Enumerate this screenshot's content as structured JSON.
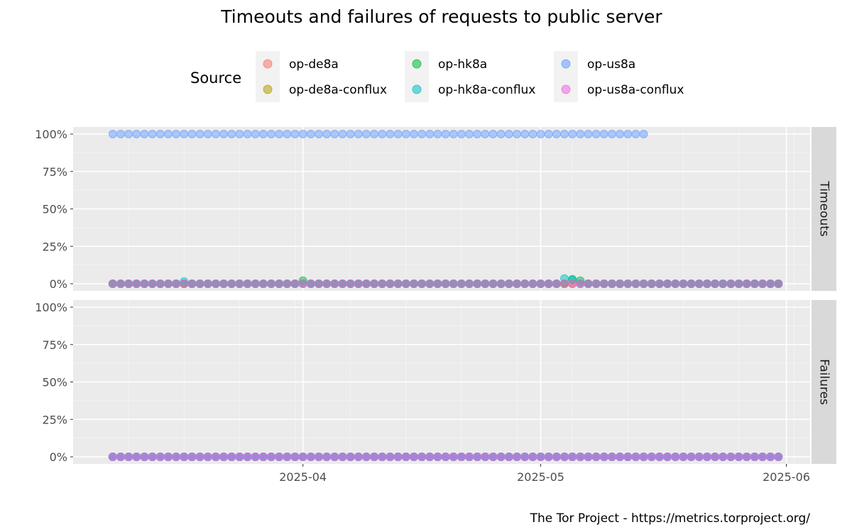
{
  "chart_data": {
    "type": "scatter",
    "title": "Timeouts and failures of requests to public server",
    "caption": "The Tor Project - https://metrics.torproject.org/",
    "legend": {
      "title": "Source",
      "placement": "top",
      "entries": [
        "op-de8a",
        "op-de8a-conflux",
        "op-hk8a",
        "op-hk8a-conflux",
        "op-us8a",
        "op-us8a-conflux"
      ]
    },
    "colors": {
      "op-de8a": "#F8766D",
      "op-de8a-conflux": "#B79F00",
      "op-hk8a": "#00BA38",
      "op-hk8a-conflux": "#00BFC4",
      "op-us8a": "#619CFF",
      "op-us8a-conflux": "#F564E3"
    },
    "facets": [
      {
        "label": "Timeouts",
        "y_ticks": [
          "0%",
          "25%",
          "50%",
          "75%",
          "100%"
        ],
        "ylim": [
          0,
          100
        ],
        "series": [
          {
            "name": "op-us8a",
            "x_start": "2025-03-08",
            "x_end": "2025-05-14",
            "value": 100
          },
          {
            "name": "op-us8a",
            "x_start": "2025-05-15",
            "x_end": "2025-05-31",
            "value": 0
          },
          {
            "name": "op-de8a",
            "x_start": "2025-03-08",
            "x_end": "2025-05-31",
            "value": 0
          },
          {
            "name": "op-de8a-conflux",
            "x_start": "2025-03-08",
            "x_end": "2025-05-31",
            "value": 0
          },
          {
            "name": "op-hk8a",
            "x_start": "2025-03-08",
            "x_end": "2025-05-31",
            "value": 0
          },
          {
            "name": "op-hk8a-conflux",
            "x_start": "2025-03-08",
            "x_end": "2025-05-31",
            "value": 0
          },
          {
            "name": "op-us8a-conflux",
            "x_start": "2025-03-08",
            "x_end": "2025-05-31",
            "value": 0
          }
        ],
        "highlights": [
          {
            "name": "op-hk8a-conflux",
            "date": "2025-03-17",
            "value": 1.5
          },
          {
            "name": "op-hk8a",
            "date": "2025-04-01",
            "value": 2
          },
          {
            "name": "op-hk8a-conflux",
            "date": "2025-05-04",
            "value": 3.5
          },
          {
            "name": "op-hk8a",
            "date": "2025-05-05",
            "value": 3
          },
          {
            "name": "op-hk8a-conflux",
            "date": "2025-05-05",
            "value": 2.5
          },
          {
            "name": "op-hk8a",
            "date": "2025-05-06",
            "value": 2
          }
        ]
      },
      {
        "label": "Failures",
        "y_ticks": [
          "0%",
          "25%",
          "50%",
          "75%",
          "100%"
        ],
        "ylim": [
          0,
          100
        ],
        "series": [
          {
            "name": "op-de8a",
            "x_start": "2025-03-08",
            "x_end": "2025-05-31",
            "value": 0
          },
          {
            "name": "op-de8a-conflux",
            "x_start": "2025-03-08",
            "x_end": "2025-05-31",
            "value": 0
          },
          {
            "name": "op-hk8a",
            "x_start": "2025-03-08",
            "x_end": "2025-05-31",
            "value": 0
          },
          {
            "name": "op-hk8a-conflux",
            "x_start": "2025-03-08",
            "x_end": "2025-05-31",
            "value": 0
          },
          {
            "name": "op-us8a",
            "x_start": "2025-03-08",
            "x_end": "2025-05-31",
            "value": 0
          },
          {
            "name": "op-us8a-conflux",
            "x_start": "2025-03-08",
            "x_end": "2025-05-31",
            "value": 0
          }
        ]
      }
    ],
    "x_axis": {
      "ticks": [
        {
          "date": "2025-04-01",
          "label": "2025-04"
        },
        {
          "date": "2025-05-01",
          "label": "2025-05"
        },
        {
          "date": "2025-06-01",
          "label": "2025-06"
        }
      ],
      "xlim": [
        "2025-03-03",
        "2025-06-04"
      ]
    },
    "grid": true
  }
}
